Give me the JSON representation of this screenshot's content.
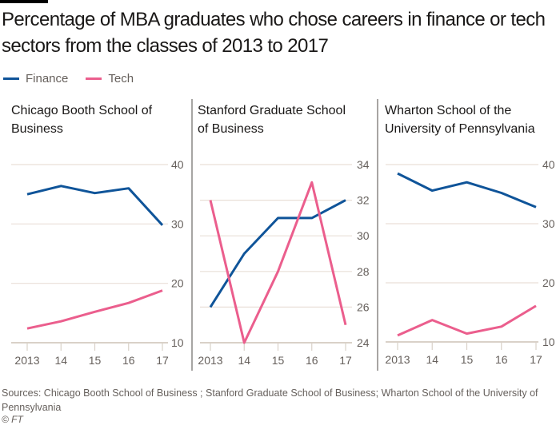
{
  "title": "Percentage of MBA graduates who chose careers in finance or tech sectors from the classes of 2013 to 2017",
  "legend": [
    {
      "label": "Finance",
      "color": "#0f5499"
    },
    {
      "label": "Tech",
      "color": "#eb5e8d"
    }
  ],
  "footer": {
    "sources": "Sources: Chicago Booth School of Business ; Stanford Graduate School of Business; Wharton School of the University of Pennsylvania",
    "copyright": "© FT"
  },
  "colors": {
    "finance": "#0f5499",
    "tech": "#eb5e8d",
    "grid": "#e9dfd7",
    "axis": "#d9d1c8",
    "tick_text": "#66605c"
  },
  "chart_data": [
    {
      "type": "line",
      "title": "Chicago Booth School of Business",
      "x": [
        "2013",
        "14",
        "15",
        "16",
        "17"
      ],
      "series": [
        {
          "name": "Finance",
          "values": [
            35.0,
            36.4,
            35.2,
            36.0,
            29.8
          ]
        },
        {
          "name": "Tech",
          "values": [
            12.4,
            13.6,
            15.2,
            16.7,
            18.8
          ]
        }
      ],
      "yticks": [
        10,
        20,
        30,
        40
      ],
      "ylim": [
        10,
        40
      ],
      "ylabel": "",
      "xlabel": "",
      "grid": true,
      "yaxis_side": "right"
    },
    {
      "type": "line",
      "title": "Stanford Graduate School of Business",
      "x": [
        "2013",
        "14",
        "15",
        "16",
        "17"
      ],
      "series": [
        {
          "name": "Finance",
          "values": [
            26,
            29,
            31,
            31,
            32
          ]
        },
        {
          "name": "Tech",
          "values": [
            32,
            24,
            28,
            33,
            25
          ]
        }
      ],
      "yticks": [
        24,
        26,
        28,
        30,
        32,
        34
      ],
      "ylim": [
        24,
        34
      ],
      "ylabel": "",
      "xlabel": "",
      "grid": true,
      "yaxis_side": "right"
    },
    {
      "type": "line",
      "title": "Wharton School of the University of Pennsylvania",
      "x": [
        "2013",
        "14",
        "15",
        "16",
        "17"
      ],
      "series": [
        {
          "name": "Finance",
          "values": [
            38.5,
            35.6,
            37.0,
            35.2,
            32.8
          ]
        },
        {
          "name": "Tech",
          "values": [
            11.1,
            13.7,
            11.4,
            12.6,
            16.1
          ]
        }
      ],
      "yticks": [
        10,
        20,
        30,
        40
      ],
      "ylim": [
        10,
        40
      ],
      "ylabel": "",
      "xlabel": "",
      "grid": true,
      "yaxis_side": "right"
    }
  ]
}
